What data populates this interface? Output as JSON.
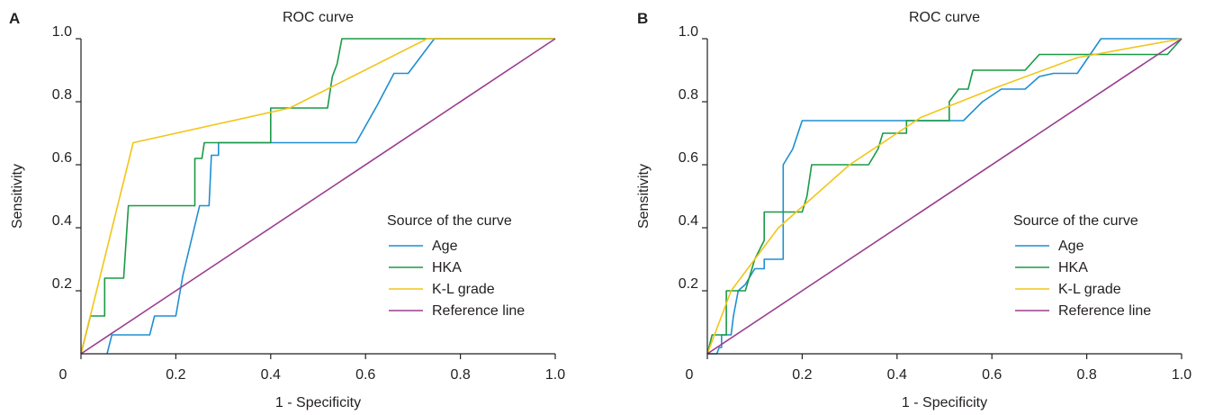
{
  "colors": {
    "age": "#1f8fd1",
    "hka": "#1a9a46",
    "kl": "#f2c518",
    "reference": "#9a3e8f",
    "axis": "#231f20"
  },
  "chart_data": [
    {
      "type": "line",
      "panel": "A",
      "title": "ROC curve",
      "xlabel": "1 - Specificity",
      "ylabel": "Sensitivity",
      "xlim": [
        0,
        1
      ],
      "ylim": [
        0,
        1
      ],
      "x_ticks": [
        {
          "value": 0,
          "label": "0"
        },
        {
          "value": 0.2,
          "label": "0.2"
        },
        {
          "value": 0.4,
          "label": "0.4"
        },
        {
          "value": 0.6,
          "label": "0.6"
        },
        {
          "value": 0.8,
          "label": "0.8"
        },
        {
          "value": 1,
          "label": "1.0"
        }
      ],
      "y_ticks": [
        {
          "value": 0.2,
          "label": "0.2"
        },
        {
          "value": 0.4,
          "label": "0.4"
        },
        {
          "value": 0.6,
          "label": "0.6"
        },
        {
          "value": 0.8,
          "label": "0.8"
        },
        {
          "value": 1,
          "label": "1.0"
        }
      ],
      "grid": false,
      "legend_title": "Source of the curve",
      "legend_position": "bottom-right",
      "series": [
        {
          "name": "Age",
          "color_key": "age",
          "points": [
            [
              0.055,
              0
            ],
            [
              0.065,
              0.06
            ],
            [
              0.145,
              0.06
            ],
            [
              0.155,
              0.12
            ],
            [
              0.2,
              0.12
            ],
            [
              0.215,
              0.25
            ],
            [
              0.25,
              0.47
            ],
            [
              0.25,
              0.47
            ],
            [
              0.27,
              0.47
            ],
            [
              0.275,
              0.63
            ],
            [
              0.29,
              0.63
            ],
            [
              0.29,
              0.67
            ],
            [
              0.58,
              0.67
            ],
            [
              0.625,
              0.79
            ],
            [
              0.66,
              0.89
            ],
            [
              0.69,
              0.89
            ],
            [
              0.745,
              1
            ],
            [
              1,
              1
            ]
          ]
        },
        {
          "name": "HKA",
          "color_key": "hka",
          "points": [
            [
              0,
              0
            ],
            [
              0.02,
              0.12
            ],
            [
              0.05,
              0.12
            ],
            [
              0.05,
              0.24
            ],
            [
              0.09,
              0.24
            ],
            [
              0.1,
              0.47
            ],
            [
              0.24,
              0.47
            ],
            [
              0.24,
              0.62
            ],
            [
              0.255,
              0.62
            ],
            [
              0.26,
              0.67
            ],
            [
              0.4,
              0.67
            ],
            [
              0.4,
              0.78
            ],
            [
              0.52,
              0.78
            ],
            [
              0.53,
              0.88
            ],
            [
              0.54,
              0.92
            ],
            [
              0.55,
              1
            ],
            [
              1,
              1
            ]
          ]
        },
        {
          "name": "K-L grade",
          "color_key": "kl",
          "points": [
            [
              0,
              0
            ],
            [
              0.11,
              0.67
            ],
            [
              0.44,
              0.78
            ],
            [
              0.73,
              1
            ],
            [
              1,
              1
            ]
          ]
        },
        {
          "name": "Reference line",
          "color_key": "reference",
          "points": [
            [
              0,
              0
            ],
            [
              1,
              1
            ]
          ]
        }
      ]
    },
    {
      "type": "line",
      "panel": "B",
      "title": "ROC curve",
      "xlabel": "1 - Specificity",
      "ylabel": "Sensitivity",
      "xlim": [
        0,
        1
      ],
      "ylim": [
        0,
        1
      ],
      "x_ticks": [
        {
          "value": 0,
          "label": "0"
        },
        {
          "value": 0.2,
          "label": "0.2"
        },
        {
          "value": 0.4,
          "label": "0.4"
        },
        {
          "value": 0.6,
          "label": "0.6"
        },
        {
          "value": 0.8,
          "label": "0.8"
        },
        {
          "value": 1,
          "label": "1.0"
        }
      ],
      "y_ticks": [
        {
          "value": 0.2,
          "label": "0.2"
        },
        {
          "value": 0.4,
          "label": "0.4"
        },
        {
          "value": 0.6,
          "label": "0.6"
        },
        {
          "value": 0.8,
          "label": "0.8"
        },
        {
          "value": 1,
          "label": "1.0"
        }
      ],
      "grid": false,
      "legend_title": "Source of the curve",
      "legend_position": "bottom-right",
      "series": [
        {
          "name": "Age",
          "color_key": "age",
          "points": [
            [
              0,
              0
            ],
            [
              0.02,
              0
            ],
            [
              0.025,
              0.02
            ],
            [
              0.03,
              0.02
            ],
            [
              0.03,
              0.06
            ],
            [
              0.05,
              0.06
            ],
            [
              0.055,
              0.12
            ],
            [
              0.065,
              0.2
            ],
            [
              0.08,
              0.22
            ],
            [
              0.1,
              0.27
            ],
            [
              0.12,
              0.27
            ],
            [
              0.12,
              0.3
            ],
            [
              0.14,
              0.3
            ],
            [
              0.16,
              0.3
            ],
            [
              0.16,
              0.6
            ],
            [
              0.18,
              0.65
            ],
            [
              0.2,
              0.74
            ],
            [
              0.54,
              0.74
            ],
            [
              0.58,
              0.8
            ],
            [
              0.62,
              0.84
            ],
            [
              0.67,
              0.84
            ],
            [
              0.7,
              0.88
            ],
            [
              0.73,
              0.89
            ],
            [
              0.78,
              0.89
            ],
            [
              0.83,
              1
            ],
            [
              1,
              1
            ]
          ]
        },
        {
          "name": "HKA",
          "color_key": "hka",
          "points": [
            [
              0,
              0
            ],
            [
              0.01,
              0.06
            ],
            [
              0.04,
              0.06
            ],
            [
              0.04,
              0.2
            ],
            [
              0.08,
              0.2
            ],
            [
              0.1,
              0.3
            ],
            [
              0.12,
              0.36
            ],
            [
              0.12,
              0.45
            ],
            [
              0.2,
              0.45
            ],
            [
              0.21,
              0.5
            ],
            [
              0.22,
              0.6
            ],
            [
              0.34,
              0.6
            ],
            [
              0.36,
              0.65
            ],
            [
              0.37,
              0.7
            ],
            [
              0.42,
              0.7
            ],
            [
              0.42,
              0.74
            ],
            [
              0.51,
              0.74
            ],
            [
              0.51,
              0.8
            ],
            [
              0.53,
              0.84
            ],
            [
              0.55,
              0.84
            ],
            [
              0.56,
              0.9
            ],
            [
              0.67,
              0.9
            ],
            [
              0.7,
              0.95
            ],
            [
              0.97,
              0.95
            ],
            [
              1,
              1
            ]
          ]
        },
        {
          "name": "K-L grade",
          "color_key": "kl",
          "points": [
            [
              0,
              0
            ],
            [
              0.05,
              0.2
            ],
            [
              0.15,
              0.4
            ],
            [
              0.3,
              0.6
            ],
            [
              0.45,
              0.75
            ],
            [
              0.6,
              0.84
            ],
            [
              0.78,
              0.94
            ],
            [
              1,
              1
            ]
          ]
        },
        {
          "name": "Reference line",
          "color_key": "reference",
          "points": [
            [
              0,
              0
            ],
            [
              1,
              1
            ]
          ]
        }
      ]
    }
  ]
}
